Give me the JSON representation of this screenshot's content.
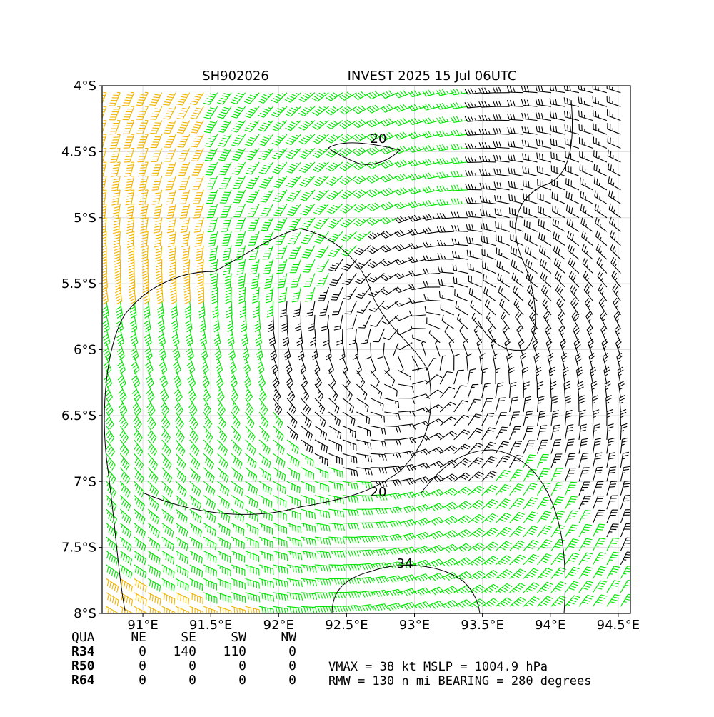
{
  "chart_data": {
    "type": "wind-barb-map",
    "title_left": "SH902026",
    "title_right": "INVEST 2025 15 Jul 06UTC",
    "xlim": [
      90.7,
      94.59
    ],
    "ylim": [
      -8,
      -4
    ],
    "xticks": [
      {
        "value": 91,
        "label": "91°E"
      },
      {
        "value": 91.5,
        "label": "91.5°E"
      },
      {
        "value": 92,
        "label": "92°E"
      },
      {
        "value": 92.5,
        "label": "92.5°E"
      },
      {
        "value": 93,
        "label": "93°E"
      },
      {
        "value": 93.5,
        "label": "93.5°E"
      },
      {
        "value": 94,
        "label": "94°E"
      },
      {
        "value": 94.5,
        "label": "94.5°E"
      }
    ],
    "yticks": [
      {
        "value": -4,
        "label": "4°S"
      },
      {
        "value": -4.5,
        "label": "4.5°S"
      },
      {
        "value": -5,
        "label": "5°S"
      },
      {
        "value": -5.5,
        "label": "5.5°S"
      },
      {
        "value": -6,
        "label": "6°S"
      },
      {
        "value": -6.5,
        "label": "6.5°S"
      },
      {
        "value": -7,
        "label": "7°S"
      },
      {
        "value": -7.5,
        "label": "7.5°S"
      },
      {
        "value": -8,
        "label": "8°S"
      }
    ],
    "grid": true,
    "contour_labels": [
      "20",
      "20",
      "34"
    ]
  },
  "radii_table": {
    "header": [
      "QUA",
      "NE",
      "SE",
      "SW",
      "NW"
    ],
    "rows": [
      [
        "R34",
        0,
        140,
        110,
        0
      ],
      [
        "R50",
        0,
        0,
        0,
        0
      ],
      [
        "R64",
        0,
        0,
        0,
        0
      ]
    ]
  },
  "summary": [
    "VMAX =  38 kt MSLP = 1004.9 hPa",
    "RMW = 130 n mi BEARING = 280 degrees"
  ]
}
